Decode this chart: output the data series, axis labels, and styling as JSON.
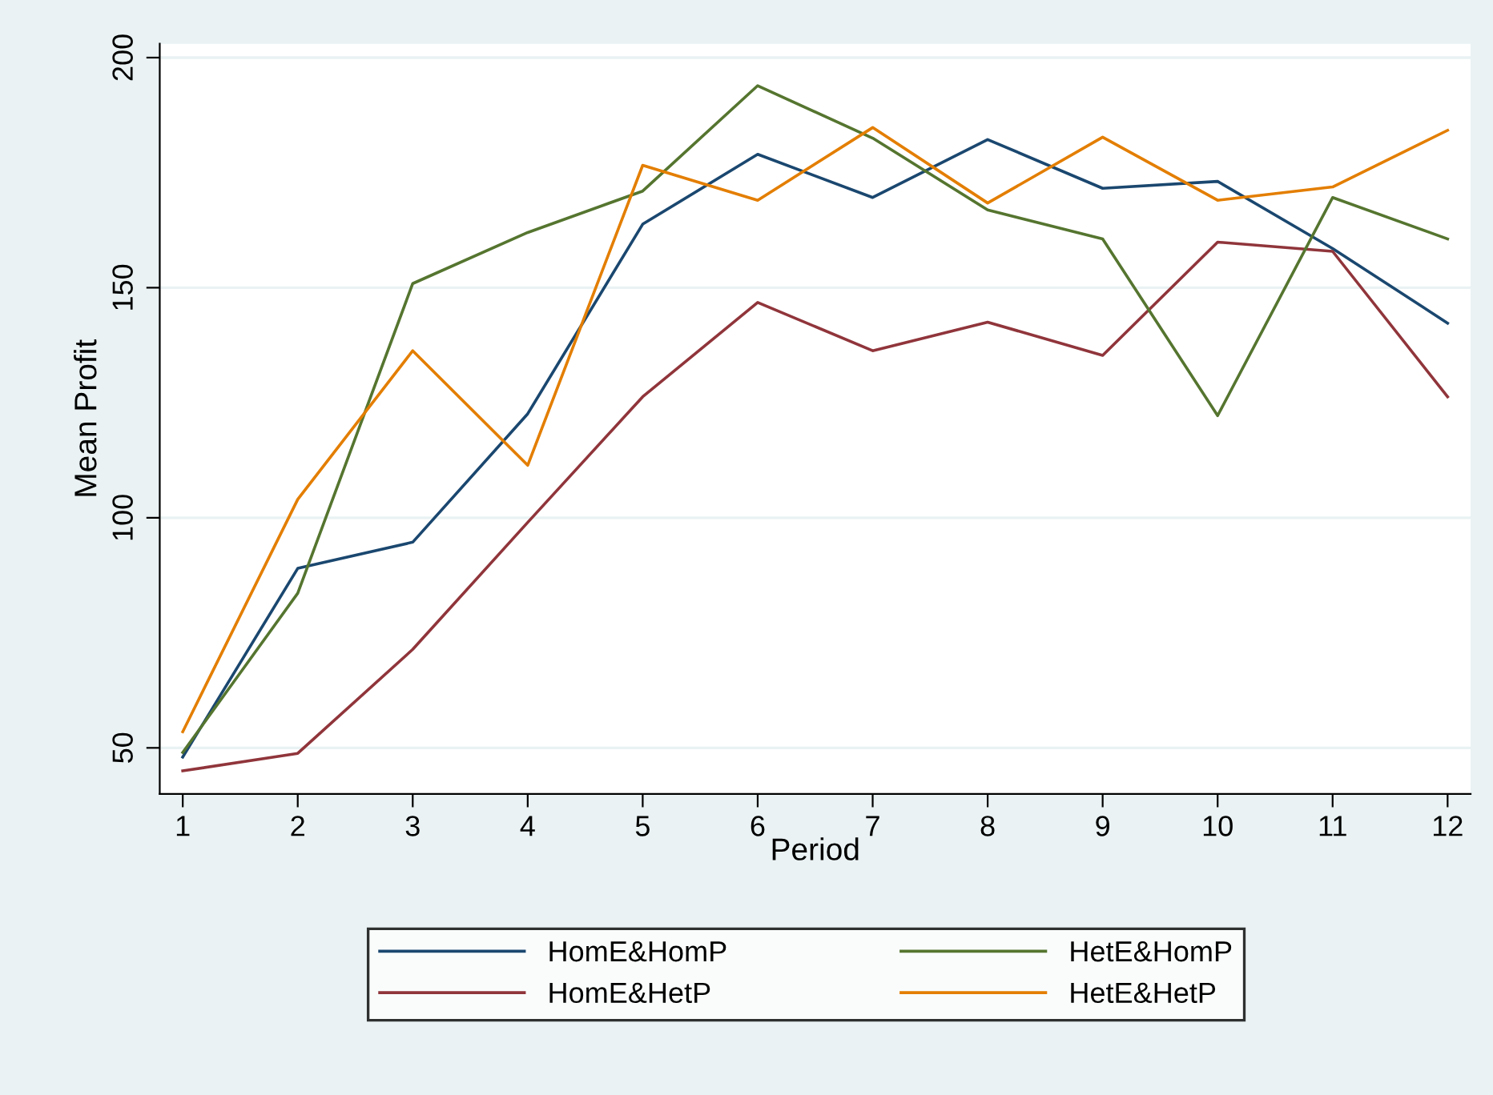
{
  "chart_data": {
    "type": "line",
    "xlabel": "Period",
    "ylabel": "Mean Profit",
    "x": [
      1,
      2,
      3,
      4,
      5,
      6,
      7,
      8,
      9,
      10,
      11,
      12
    ],
    "xlim": [
      0.8,
      12.2
    ],
    "xticks": [
      1,
      2,
      3,
      4,
      5,
      6,
      7,
      8,
      9,
      10,
      11,
      12
    ],
    "ylim": [
      40,
      203
    ],
    "yticks": [
      50,
      100,
      150,
      200
    ],
    "grid": "y",
    "legend": "bottom",
    "marker": "none",
    "line_style": "solid",
    "series": [
      {
        "name": "HomE&HomP",
        "color": "#1a476f",
        "values": [
          48,
          89,
          94.7,
          122.6,
          163.8,
          179,
          169.6,
          182.2,
          171.6,
          173.1,
          158.5,
          142.3
        ]
      },
      {
        "name": "HomE&HetP",
        "color": "#90353b",
        "values": [
          45,
          48.8,
          71.4,
          99,
          126.3,
          146.8,
          136.3,
          142.5,
          135.3,
          159.9,
          157.9,
          126.3
        ]
      },
      {
        "name": "HetE&HomP",
        "color": "#55752f",
        "values": [
          49,
          83.6,
          150.9,
          162,
          171,
          193.9,
          182.5,
          166.9,
          160.6,
          122.2,
          169.6,
          160.6
        ]
      },
      {
        "name": "HetE&HetP",
        "color": "#e37e00",
        "values": [
          53.5,
          104,
          136.3,
          111.4,
          176.6,
          169,
          184.8,
          168.4,
          182.7,
          169,
          171.9,
          184.2
        ]
      }
    ]
  }
}
